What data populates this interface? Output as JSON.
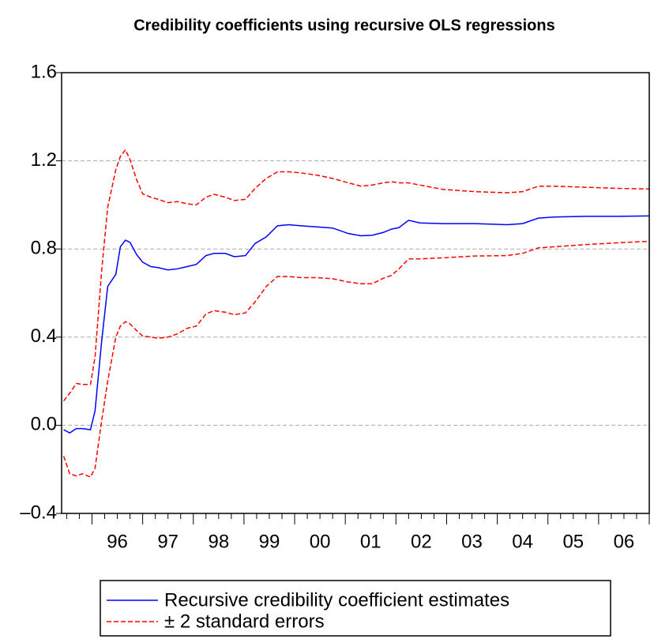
{
  "chart_data": {
    "type": "line",
    "title": "Credibility coefficients using recursive OLS regressions",
    "x": [
      1995.44,
      1995.56,
      1995.69,
      1995.81,
      1995.97,
      1996.06,
      1996.19,
      1996.31,
      1996.47,
      1996.56,
      1996.66,
      1996.75,
      1996.88,
      1997.0,
      1997.16,
      1997.31,
      1997.5,
      1997.69,
      1997.88,
      1998.06,
      1998.25,
      1998.41,
      1998.63,
      1998.81,
      1999.03,
      1999.22,
      1999.44,
      1999.66,
      1999.88,
      2000.13,
      2000.44,
      2000.75,
      2001.06,
      2001.31,
      2001.53,
      2001.75,
      2001.91,
      2002.06,
      2002.25,
      2002.47,
      2002.94,
      2003.56,
      2004.19,
      2004.5,
      2004.81,
      2005.13,
      2005.75,
      2006.38,
      2007.0
    ],
    "series": [
      {
        "name": "Recursive credibility coefficient estimates",
        "color": "#0000ff",
        "dash": false,
        "values": [
          -0.02,
          -0.035,
          -0.015,
          -0.015,
          -0.02,
          0.065,
          0.38,
          0.63,
          0.685,
          0.81,
          0.84,
          0.83,
          0.775,
          0.74,
          0.72,
          0.715,
          0.705,
          0.71,
          0.72,
          0.73,
          0.77,
          0.78,
          0.78,
          0.765,
          0.77,
          0.825,
          0.855,
          0.905,
          0.91,
          0.905,
          0.9,
          0.895,
          0.87,
          0.86,
          0.862,
          0.875,
          0.89,
          0.897,
          0.93,
          0.918,
          0.915,
          0.915,
          0.91,
          0.915,
          0.94,
          0.945,
          0.948,
          0.948,
          0.95
        ]
      },
      {
        "name": "± 2  standard errors",
        "color": "#ff0000",
        "dash": true,
        "values": [
          0.11,
          0.145,
          0.19,
          0.185,
          0.185,
          0.31,
          0.7,
          0.99,
          1.16,
          1.22,
          1.25,
          1.205,
          1.115,
          1.05,
          1.035,
          1.025,
          1.01,
          1.015,
          1.005,
          1.0,
          1.035,
          1.048,
          1.035,
          1.02,
          1.025,
          1.075,
          1.12,
          1.15,
          1.15,
          1.145,
          1.135,
          1.12,
          1.1,
          1.085,
          1.09,
          1.1,
          1.105,
          1.1,
          1.1,
          1.09,
          1.07,
          1.06,
          1.055,
          1.06,
          1.085,
          1.085,
          1.08,
          1.075,
          1.072
        ],
        "lower": [
          -0.14,
          -0.22,
          -0.23,
          -0.22,
          -0.235,
          -0.195,
          0.02,
          0.2,
          0.4,
          0.45,
          0.47,
          0.46,
          0.43,
          0.405,
          0.4,
          0.395,
          0.4,
          0.415,
          0.44,
          0.45,
          0.505,
          0.52,
          0.513,
          0.502,
          0.51,
          0.56,
          0.63,
          0.675,
          0.675,
          0.67,
          0.67,
          0.665,
          0.65,
          0.642,
          0.642,
          0.667,
          0.68,
          0.71,
          0.755,
          0.755,
          0.76,
          0.768,
          0.77,
          0.78,
          0.805,
          0.81,
          0.82,
          0.828,
          0.835
        ]
      }
    ],
    "xlim": [
      1995.4,
      2007.0
    ],
    "xticks": [
      {
        "value": 1996.5,
        "label": "96"
      },
      {
        "value": 1997.5,
        "label": "97"
      },
      {
        "value": 1998.5,
        "label": "98"
      },
      {
        "value": 1999.5,
        "label": "99"
      },
      {
        "value": 2000.5,
        "label": "00"
      },
      {
        "value": 2001.5,
        "label": "01"
      },
      {
        "value": 2002.5,
        "label": "02"
      },
      {
        "value": 2003.5,
        "label": "03"
      },
      {
        "value": 2004.5,
        "label": "04"
      },
      {
        "value": 2005.5,
        "label": "05"
      },
      {
        "value": 2006.5,
        "label": "06"
      }
    ],
    "ylim": [
      -0.4,
      1.6
    ],
    "yticks": [
      {
        "value": -0.4,
        "label": "–0.4"
      },
      {
        "value": 0,
        "label": "0.0"
      },
      0.4,
      0.8,
      1.2,
      1.6
    ],
    "grid": true
  }
}
